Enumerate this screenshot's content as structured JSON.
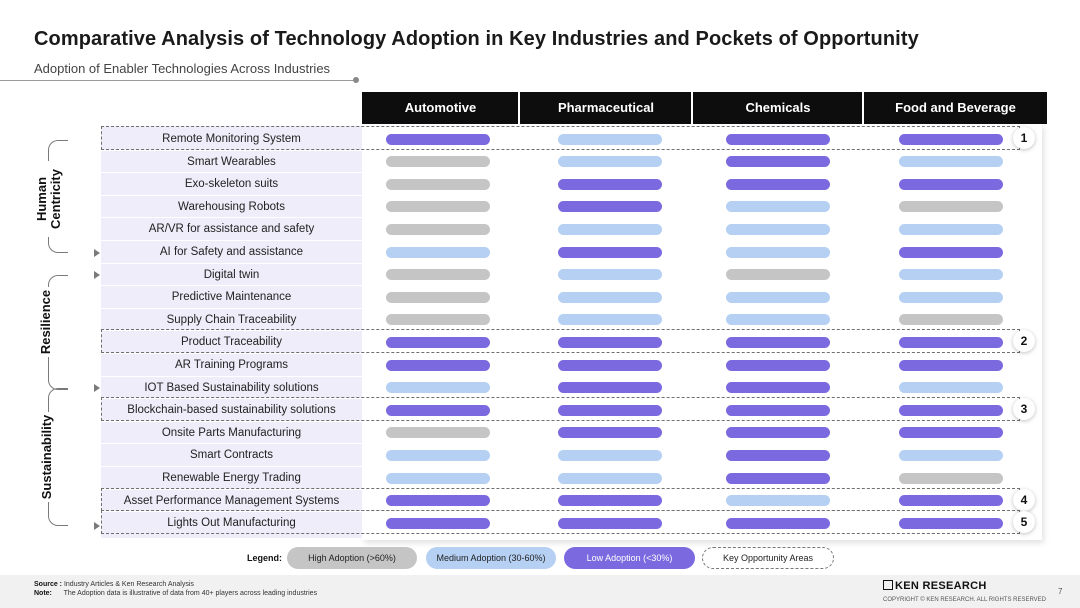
{
  "title": "Comparative Analysis of Technology Adoption in Key Industries and Pockets of Opportunity",
  "subtitle": "Adoption of Enabler Technologies Across Industries",
  "columns": [
    "Automotive",
    "Pharmaceutical",
    "Chemicals",
    "Food and Beverage"
  ],
  "colors": {
    "high": "#c5c5c5",
    "medium": "#b5d0f3",
    "low": "#7b69e0",
    "header": "#0d0d0d",
    "label_bg": "#eeedf9"
  },
  "groups": [
    {
      "label": "Human\nCentricity",
      "label_line1": "Human",
      "label_line2": "Centricity"
    },
    {
      "label": "Resilience"
    },
    {
      "label": "Sustainability"
    }
  ],
  "rows": [
    {
      "label": "Remote Monitoring System",
      "levels": [
        "low",
        "medium",
        "low",
        "low"
      ]
    },
    {
      "label": "Smart Wearables",
      "levels": [
        "high",
        "medium",
        "low",
        "medium"
      ]
    },
    {
      "label": "Exo-skeleton suits",
      "levels": [
        "high",
        "low",
        "low",
        "low"
      ]
    },
    {
      "label": "Warehousing Robots",
      "levels": [
        "high",
        "low",
        "medium",
        "high"
      ]
    },
    {
      "label": "AR/VR for assistance and safety",
      "levels": [
        "high",
        "medium",
        "medium",
        "medium"
      ]
    },
    {
      "label": "AI for Safety and assistance",
      "levels": [
        "medium",
        "low",
        "medium",
        "low"
      ]
    },
    {
      "label": "Digital twin",
      "levels": [
        "high",
        "medium",
        "high",
        "medium"
      ]
    },
    {
      "label": "Predictive Maintenance",
      "levels": [
        "high",
        "medium",
        "medium",
        "medium"
      ]
    },
    {
      "label": "Supply Chain Traceability",
      "levels": [
        "high",
        "medium",
        "medium",
        "high"
      ]
    },
    {
      "label": "Product Traceability",
      "levels": [
        "low",
        "low",
        "low",
        "low"
      ]
    },
    {
      "label": "AR Training Programs",
      "levels": [
        "low",
        "low",
        "low",
        "low"
      ]
    },
    {
      "label": "IOT Based Sustainability solutions",
      "levels": [
        "medium",
        "low",
        "low",
        "medium"
      ]
    },
    {
      "label": "Blockchain-based sustainability solutions",
      "levels": [
        "low",
        "low",
        "low",
        "low"
      ]
    },
    {
      "label": "Onsite Parts Manufacturing",
      "levels": [
        "high",
        "low",
        "low",
        "low"
      ]
    },
    {
      "label": "Smart Contracts",
      "levels": [
        "medium",
        "medium",
        "low",
        "medium"
      ]
    },
    {
      "label": "Renewable Energy Trading",
      "levels": [
        "medium",
        "medium",
        "low",
        "high"
      ]
    },
    {
      "label": "Asset Performance Management Systems",
      "levels": [
        "low",
        "low",
        "medium",
        "low"
      ]
    },
    {
      "label": "Lights Out Manufacturing",
      "levels": [
        "low",
        "low",
        "low",
        "low"
      ]
    }
  ],
  "opportunities": [
    {
      "number": "1",
      "row": 0
    },
    {
      "number": "2",
      "row": 9
    },
    {
      "number": "3",
      "row": 12
    },
    {
      "number": "4",
      "row": 16
    },
    {
      "number": "5",
      "row": 17
    }
  ],
  "legend": {
    "title": "Legend:",
    "high": "High Adoption (>60%)",
    "medium": "Medium Adoption (30-60%)",
    "low": "Low Adoption (<30%)",
    "key": "Key Opportunity Areas"
  },
  "footer": {
    "source_label": "Source :",
    "source_text": "Industry Articles & Ken Research Analysis",
    "note_label": "Note:",
    "note_text": "The Adoption data is illustrative of data from 40+ players across leading industries",
    "brand": "KEN RESEARCH",
    "copyright": "COPYRIGHT © KEN RESEARCH. ALL RIGHTS RESERVED",
    "page": "7"
  }
}
